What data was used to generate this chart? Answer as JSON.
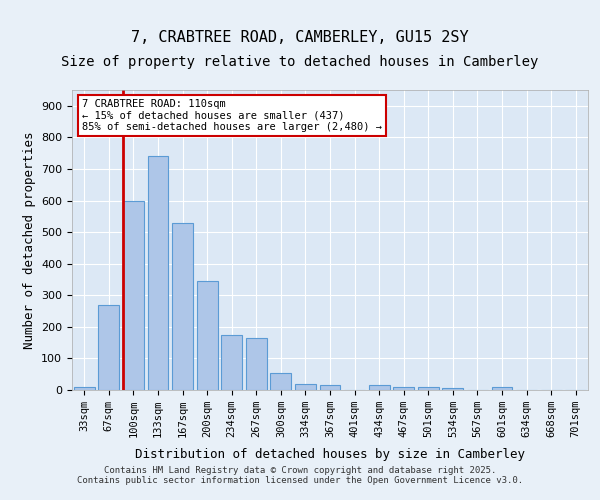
{
  "title": "7, CRABTREE ROAD, CAMBERLEY, GU15 2SY",
  "subtitle": "Size of property relative to detached houses in Camberley",
  "xlabel": "Distribution of detached houses by size in Camberley",
  "ylabel": "Number of detached properties",
  "categories": [
    "33sqm",
    "67sqm",
    "100sqm",
    "133sqm",
    "167sqm",
    "200sqm",
    "234sqm",
    "267sqm",
    "300sqm",
    "334sqm",
    "367sqm",
    "401sqm",
    "434sqm",
    "467sqm",
    "501sqm",
    "534sqm",
    "567sqm",
    "601sqm",
    "634sqm",
    "668sqm",
    "701sqm"
  ],
  "values": [
    10,
    270,
    600,
    740,
    530,
    345,
    175,
    165,
    55,
    20,
    15,
    0,
    15,
    10,
    8,
    5,
    0,
    10,
    0,
    0,
    0
  ],
  "bar_color": "#aec6e8",
  "bar_edge_color": "#5b9bd5",
  "vline_color": "#cc0000",
  "vline_x": 1.575,
  "annotation_text": "7 CRABTREE ROAD: 110sqm\n← 15% of detached houses are smaller (437)\n85% of semi-detached houses are larger (2,480) →",
  "annotation_box_color": "#ffffff",
  "annotation_box_edge": "#cc0000",
  "ylim": [
    0,
    950
  ],
  "yticks": [
    0,
    100,
    200,
    300,
    400,
    500,
    600,
    700,
    800,
    900
  ],
  "bg_color": "#e8f0f8",
  "plot_bg_color": "#dce8f5",
  "footer": "Contains HM Land Registry data © Crown copyright and database right 2025.\nContains public sector information licensed under the Open Government Licence v3.0.",
  "title_fontsize": 11,
  "subtitle_fontsize": 10,
  "xlabel_fontsize": 9,
  "ylabel_fontsize": 9
}
